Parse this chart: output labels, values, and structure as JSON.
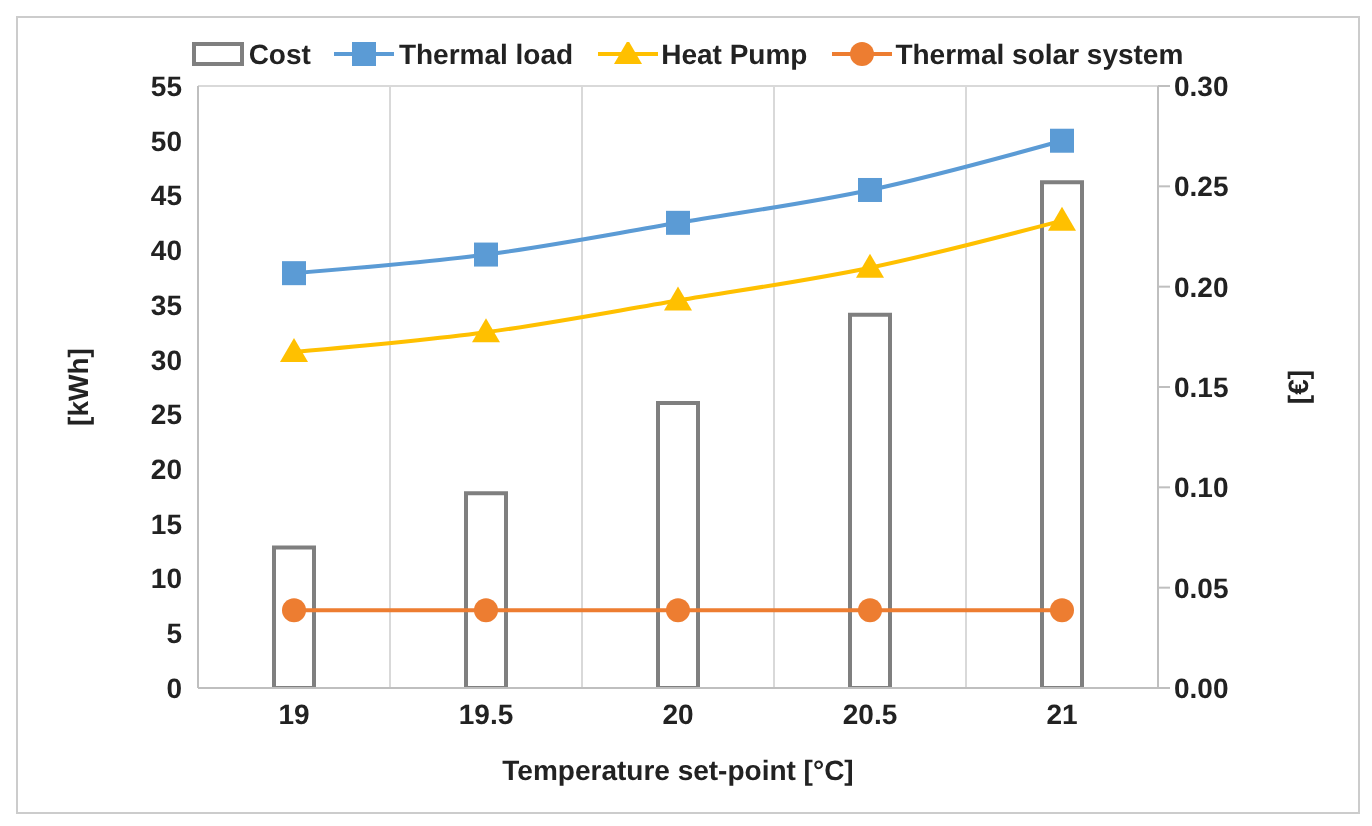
{
  "chart_data": {
    "type": "line",
    "xlabel": "Temperature set-point [°C]",
    "ylabel": "[kWh]",
    "y2label": "[€]",
    "categories": [
      "19",
      "19.5",
      "20",
      "20.5",
      "21"
    ],
    "series": [
      {
        "name": "Cost",
        "type": "bar",
        "axis": "y2",
        "color": "#7f7f7f",
        "values": [
          0.07,
          0.097,
          0.142,
          0.186,
          0.252
        ]
      },
      {
        "name": "Thermal load",
        "marker": "square",
        "color": "#5b9bd5",
        "values": [
          37.9,
          39.6,
          42.5,
          45.5,
          50.0
        ]
      },
      {
        "name": "Heat Pump",
        "marker": "triangle",
        "color": "#ffc000",
        "values": [
          30.7,
          32.5,
          35.4,
          38.4,
          42.7
        ]
      },
      {
        "name": "Thermal solar system",
        "marker": "circle",
        "color": "#ed7d31",
        "values": [
          7.1,
          7.1,
          7.1,
          7.1,
          7.1
        ]
      }
    ],
    "ylim": [
      0,
      55
    ],
    "yticks": [
      0,
      5,
      10,
      15,
      20,
      25,
      30,
      35,
      40,
      45,
      50,
      55
    ],
    "y2lim": [
      0,
      0.3
    ],
    "y2ticks": [
      {
        "value": 0,
        "label": "0.00"
      },
      {
        "value": 0.05,
        "label": "0.05"
      },
      {
        "value": 0.1,
        "label": "0.10"
      },
      {
        "value": 0.15,
        "label": "0.15"
      },
      {
        "value": 0.2,
        "label": "0.20"
      },
      {
        "value": 0.25,
        "label": "0.25"
      },
      {
        "value": 0.3,
        "label": "0.30"
      }
    ],
    "grid": true,
    "legend": "top"
  }
}
